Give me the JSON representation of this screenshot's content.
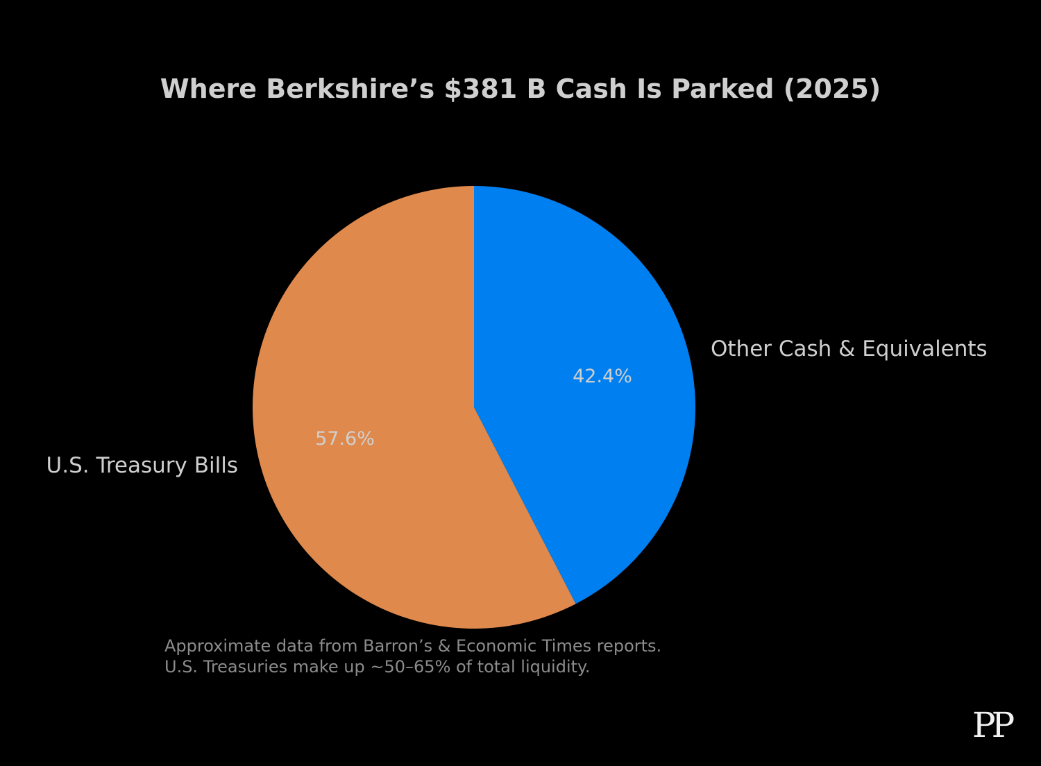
{
  "chart_data": {
    "type": "pie",
    "title": "Where Berkshire’s $381 B Cash Is Parked (2025)",
    "slices": [
      {
        "label": "Other Cash & Equivalents",
        "value": 42.4,
        "pct_label": "42.4%",
        "color": "#0080f0"
      },
      {
        "label": "U.S. Treasury Bills",
        "value": 57.6,
        "pct_label": "57.6%",
        "color": "#e0894d"
      }
    ],
    "start_angle_deg": 90,
    "direction": "clockwise"
  },
  "footnote": {
    "line1": "Approximate data from Barron’s & Economic Times reports.",
    "line2": "U.S. Treasuries make up ~50–65% of total liquidity."
  },
  "brand": {
    "mark": "PP"
  }
}
